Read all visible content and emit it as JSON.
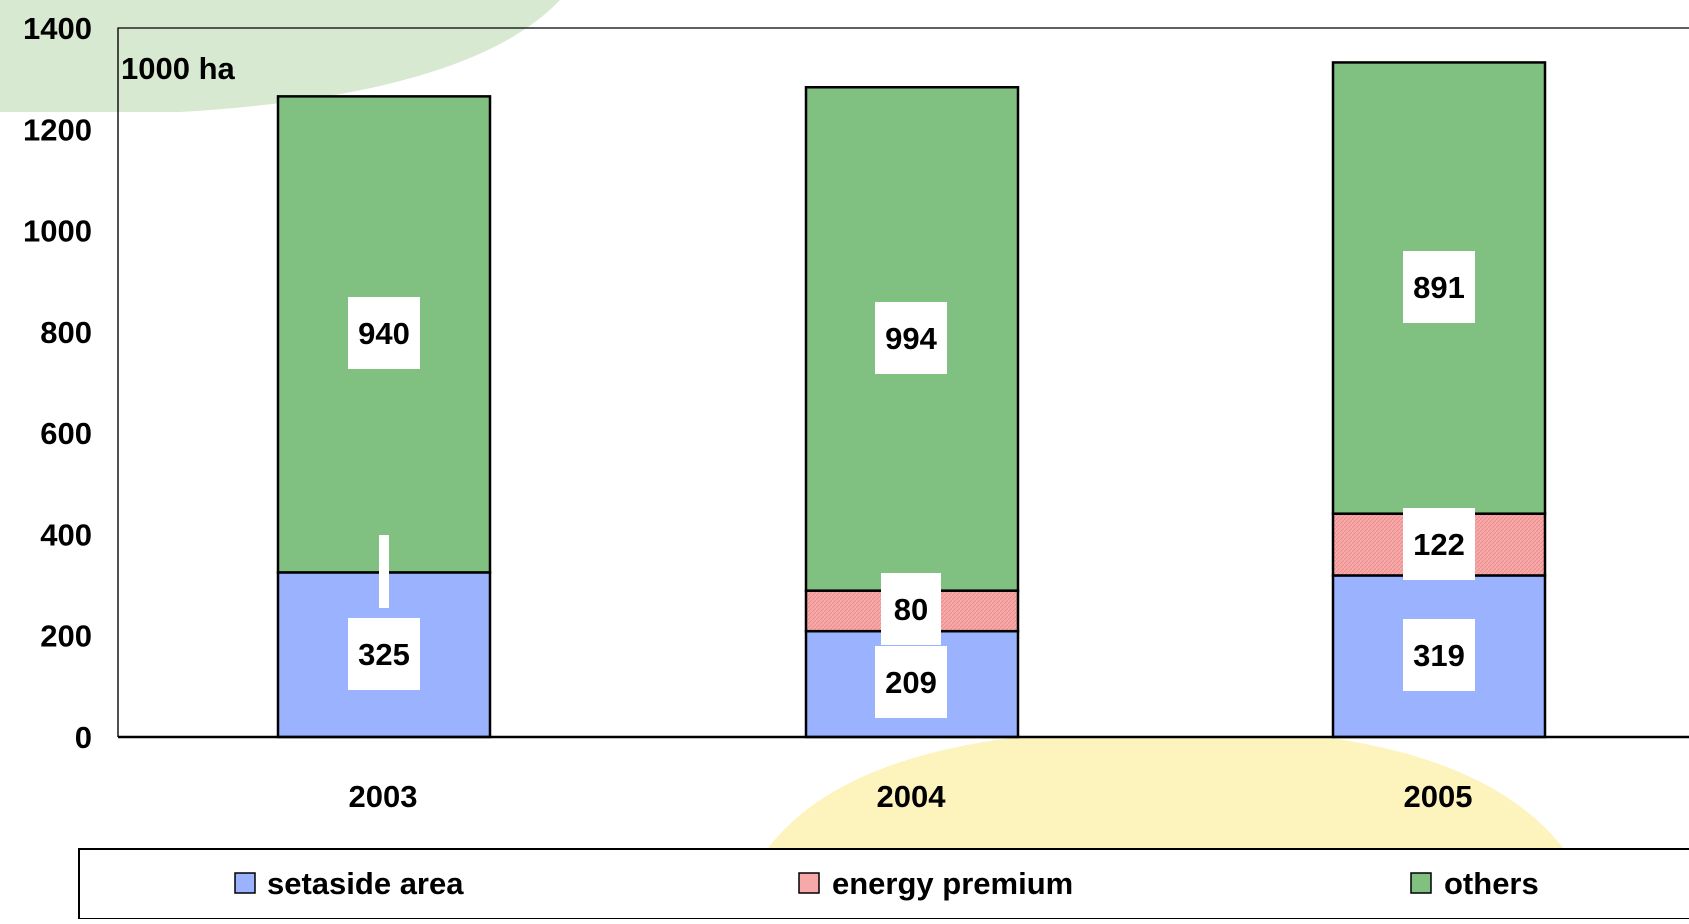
{
  "chart_data": {
    "type": "bar",
    "stacked": true,
    "unit_label": "1000 ha",
    "categories": [
      "2003",
      "2004",
      "2005"
    ],
    "series": [
      {
        "name": "setaside area",
        "values": [
          325,
          209,
          319
        ],
        "color": "#9bb3ff"
      },
      {
        "name": "energy premium",
        "values": [
          0,
          80,
          122
        ],
        "color": "#f7a8a8"
      },
      {
        "name": "others",
        "values": [
          940,
          994,
          891
        ],
        "color": "#80c080"
      }
    ],
    "ylim": [
      0,
      1400
    ],
    "yticks": [
      0,
      200,
      400,
      600,
      800,
      1000,
      1200,
      1400
    ],
    "grid": false,
    "legend_position": "bottom",
    "background_colors": {
      "top_left_blob": "#d8e9d2",
      "bottom_center_blob": "#fcf3bd"
    }
  }
}
